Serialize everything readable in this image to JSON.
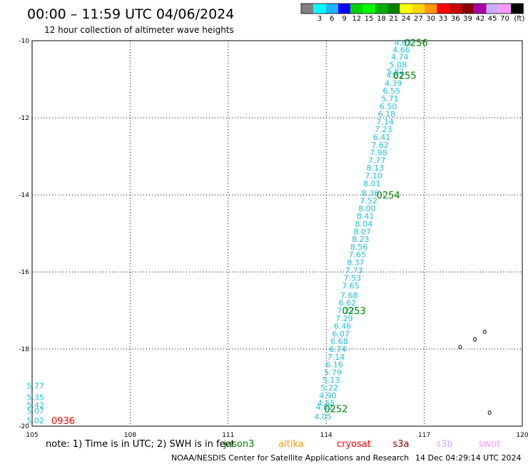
{
  "header": {
    "title": "00:00 – 11:59 UTC 04/06/2024",
    "subtitle": "12 hour collection of altimeter wave heights"
  },
  "colorbar": {
    "unit": "(ft)",
    "bins": [
      {
        "color": "#808080",
        "label": ""
      },
      {
        "color": "#00ffff",
        "label": "3"
      },
      {
        "color": "#1eb4ff",
        "label": "6"
      },
      {
        "color": "#0000ff",
        "label": "9"
      },
      {
        "color": "#00d400",
        "label": "12"
      },
      {
        "color": "#00ff00",
        "label": "15"
      },
      {
        "color": "#00b000",
        "label": "18"
      },
      {
        "color": "#008000",
        "label": "21"
      },
      {
        "color": "#ffff00",
        "label": "24"
      },
      {
        "color": "#ffd700",
        "label": "27"
      },
      {
        "color": "#ff9900",
        "label": "30"
      },
      {
        "color": "#ff0000",
        "label": "33"
      },
      {
        "color": "#cc0000",
        "label": "36"
      },
      {
        "color": "#880000",
        "label": "39"
      },
      {
        "color": "#aa00aa",
        "label": "42"
      },
      {
        "color": "#ccaaff",
        "label": "45"
      },
      {
        "color": "#ff99ff",
        "label": "70"
      },
      {
        "color": "#000000",
        "label": ""
      }
    ]
  },
  "chart_data": {
    "type": "scatter",
    "xlim": [
      105,
      120
    ],
    "ylim": [
      -20,
      -10
    ],
    "xticks": [
      105,
      108,
      111,
      114,
      117,
      120
    ],
    "yticks": [
      -10,
      -12,
      -14,
      -16,
      -18,
      -20
    ],
    "x_tick_labels": [
      "105",
      "108",
      "111",
      "114",
      "117",
      "120"
    ],
    "y_tick_labels": [
      "-10",
      "-12",
      "-14",
      "-16",
      "-18",
      "-20"
    ],
    "grid": true,
    "point_color": "#20c0d8",
    "series": [
      {
        "points": [
          {
            "x": 116.35,
            "y": -10.05,
            "v": "4.63"
          },
          {
            "x": 116.3,
            "y": -10.23,
            "v": "4.66"
          },
          {
            "x": 116.25,
            "y": -10.42,
            "v": "4.74"
          },
          {
            "x": 116.2,
            "y": -10.62,
            "v": "5.08"
          },
          {
            "x": 116.12,
            "y": -10.8,
            "v": "5.82"
          },
          {
            "x": 116.1,
            "y": -10.9,
            "v": "4.62"
          },
          {
            "x": 116.05,
            "y": -11.1,
            "v": "4.39"
          },
          {
            "x": 116.0,
            "y": -11.3,
            "v": "6.55"
          },
          {
            "x": 115.95,
            "y": -11.5,
            "v": "5.71"
          },
          {
            "x": 115.9,
            "y": -11.7,
            "v": "6.50"
          },
          {
            "x": 115.85,
            "y": -11.9,
            "v": "6.18"
          },
          {
            "x": 115.8,
            "y": -12.1,
            "v": "7.14"
          },
          {
            "x": 115.75,
            "y": -12.3,
            "v": "7.23"
          },
          {
            "x": 115.7,
            "y": -12.5,
            "v": "6.41"
          },
          {
            "x": 115.65,
            "y": -12.7,
            "v": "7.62"
          },
          {
            "x": 115.6,
            "y": -12.9,
            "v": "7.98"
          },
          {
            "x": 115.55,
            "y": -13.1,
            "v": "7.77"
          },
          {
            "x": 115.5,
            "y": -13.3,
            "v": "8.13"
          },
          {
            "x": 115.45,
            "y": -13.5,
            "v": "7.10"
          },
          {
            "x": 115.4,
            "y": -13.7,
            "v": "8.01"
          },
          {
            "x": 115.35,
            "y": -13.95,
            "v": "8.36"
          },
          {
            "x": 115.3,
            "y": -14.15,
            "v": "7.52"
          },
          {
            "x": 115.25,
            "y": -14.35,
            "v": "8.00"
          },
          {
            "x": 115.2,
            "y": -14.55,
            "v": "8.41"
          },
          {
            "x": 115.15,
            "y": -14.75,
            "v": "8.04"
          },
          {
            "x": 115.1,
            "y": -14.95,
            "v": "8.07"
          },
          {
            "x": 115.05,
            "y": -15.15,
            "v": "8.23"
          },
          {
            "x": 115.0,
            "y": -15.35,
            "v": "8.56"
          },
          {
            "x": 114.95,
            "y": -15.55,
            "v": "7.65"
          },
          {
            "x": 114.9,
            "y": -15.75,
            "v": "8.37"
          },
          {
            "x": 114.85,
            "y": -15.95,
            "v": "7.73"
          },
          {
            "x": 114.8,
            "y": -16.15,
            "v": "7.53"
          },
          {
            "x": 114.75,
            "y": -16.35,
            "v": "7.65"
          },
          {
            "x": 114.7,
            "y": -16.6,
            "v": "7.68"
          },
          {
            "x": 114.65,
            "y": -16.8,
            "v": "6.62"
          },
          {
            "x": 114.6,
            "y": -17.0,
            "v": "7.27"
          },
          {
            "x": 114.55,
            "y": -17.2,
            "v": "7.29"
          },
          {
            "x": 114.5,
            "y": -17.4,
            "v": "6.46"
          },
          {
            "x": 114.45,
            "y": -17.6,
            "v": "6.07"
          },
          {
            "x": 114.4,
            "y": -17.8,
            "v": "6.68"
          },
          {
            "x": 114.35,
            "y": -18.0,
            "v": "6.74"
          },
          {
            "x": 114.3,
            "y": -18.2,
            "v": "7.14"
          },
          {
            "x": 114.25,
            "y": -18.4,
            "v": "6.16"
          },
          {
            "x": 114.2,
            "y": -18.6,
            "v": "5.79"
          },
          {
            "x": 114.15,
            "y": -18.8,
            "v": "5.13"
          },
          {
            "x": 114.1,
            "y": -19.0,
            "v": "5.22"
          },
          {
            "x": 114.05,
            "y": -19.2,
            "v": "4.90"
          },
          {
            "x": 114.0,
            "y": -19.4,
            "v": "4.55"
          },
          {
            "x": 113.95,
            "y": -19.5,
            "v": "4.82"
          },
          {
            "x": 113.9,
            "y": -19.75,
            "v": "4.05"
          }
        ]
      },
      {
        "points": [
          {
            "x": 105.1,
            "y": -18.95,
            "v": "5.77"
          },
          {
            "x": 105.1,
            "y": -19.25,
            "v": "5.35"
          },
          {
            "x": 105.1,
            "y": -19.45,
            "v": "5.42"
          },
          {
            "x": 105.1,
            "y": -19.6,
            "v": "5.07"
          },
          {
            "x": 105.1,
            "y": -19.85,
            "v": "5.02"
          }
        ]
      }
    ],
    "pass_labels": [
      {
        "x": 116.75,
        "y": -10.05,
        "text": "0256",
        "color": "#008000"
      },
      {
        "x": 116.4,
        "y": -10.9,
        "text": "0255",
        "color": "#008000"
      },
      {
        "x": 115.9,
        "y": -14.0,
        "text": "0254",
        "color": "#008000"
      },
      {
        "x": 114.85,
        "y": -17.0,
        "text": "0253",
        "color": "#008000"
      },
      {
        "x": 114.3,
        "y": -19.55,
        "text": "0252",
        "color": "#008000"
      },
      {
        "x": 105.95,
        "y": -19.85,
        "text": "0936",
        "color": "#ff0000"
      }
    ],
    "islands": [
      {
        "x": 118.85,
        "y": -17.55
      },
      {
        "x": 118.55,
        "y": -17.75
      },
      {
        "x": 118.1,
        "y": -17.95
      },
      {
        "x": 119.0,
        "y": -19.65
      }
    ]
  },
  "footer": {
    "note": "note: 1) Time is in UTC; 2) SWH is in feet",
    "legend": [
      {
        "text": "jason3",
        "color": "#008000"
      },
      {
        "text": "altika",
        "color": "#ff9900"
      },
      {
        "text": "cryosat",
        "color": "#ff0000"
      },
      {
        "text": "s3a",
        "color": "#880000"
      },
      {
        "text": "s3b",
        "color": "#ccaaff"
      },
      {
        "text": "swot",
        "color": "#ff99ff"
      }
    ],
    "credit": "NOAA/NESDIS Center for Satellite Applications and Research",
    "timestamp": "14 Dec 04:29:14 UTC 2024"
  }
}
